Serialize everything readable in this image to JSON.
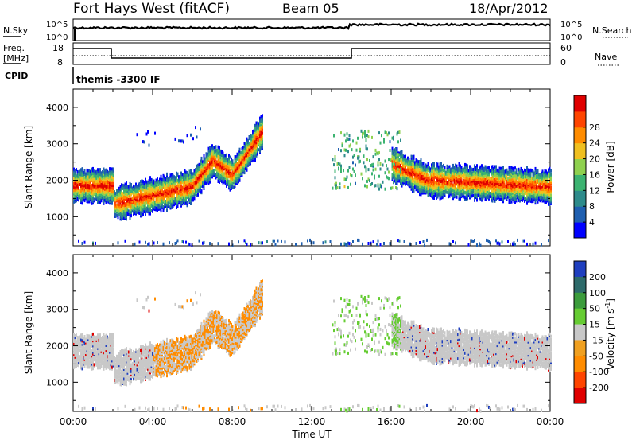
{
  "header": {
    "station": "Fort Hays West (fitACF)",
    "beam": "Beam 05",
    "date": "18/Apr/2012"
  },
  "aux": {
    "nsky_label": "N.Sky",
    "nsearch_label": "N.Search",
    "freq_label_1": "Freq.",
    "freq_label_2": "[MHz]",
    "nave_label": "Nave",
    "cpid_label": "CPID",
    "noise_ticks": [
      "10^5",
      "10^0"
    ],
    "freq_ticks": [
      "18",
      "8"
    ],
    "nave_ticks": [
      "60",
      "0"
    ],
    "cpid_text": "themis -3300 IF"
  },
  "chart_data": [
    {
      "type": "heatmap",
      "name": "power",
      "ylabel": "Slant Range [km]",
      "ylim": [
        200,
        4500
      ],
      "yticks": [
        1000,
        2000,
        3000,
        4000
      ],
      "xlim": [
        0,
        24
      ],
      "colorbar": {
        "label": "Power [dB]",
        "ticks": [
          "4",
          "8",
          "12",
          "16",
          "20",
          "24",
          "28"
        ],
        "colors": [
          "#0000ff",
          "#1f5fb0",
          "#2e8b8b",
          "#3cb371",
          "#8fd14f",
          "#f0c020",
          "#ff8c00",
          "#ff4500",
          "#e00000"
        ]
      }
    },
    {
      "type": "heatmap",
      "name": "velocity",
      "ylabel": "Slant Range [km]",
      "ylim": [
        200,
        4500
      ],
      "yticks": [
        1000,
        2000,
        3000,
        4000
      ],
      "xlim": [
        0,
        24
      ],
      "xlabel": "Time UT",
      "xticks": [
        "00:00",
        "04:00",
        "08:00",
        "12:00",
        "16:00",
        "20:00",
        "00:00"
      ],
      "colorbar": {
        "label": "Velocity [m s",
        "label_sup": "-1",
        "label_end": "]",
        "ticks": [
          "200",
          "100",
          "50",
          "15",
          "-15",
          "-50",
          "-100",
          "-200"
        ],
        "colors": [
          "#1f3fbf",
          "#2e6b6b",
          "#3c9c3c",
          "#66cc33",
          "#c8c8c8",
          "#f0a020",
          "#ff8c00",
          "#ff4500",
          "#e00000"
        ]
      }
    }
  ]
}
